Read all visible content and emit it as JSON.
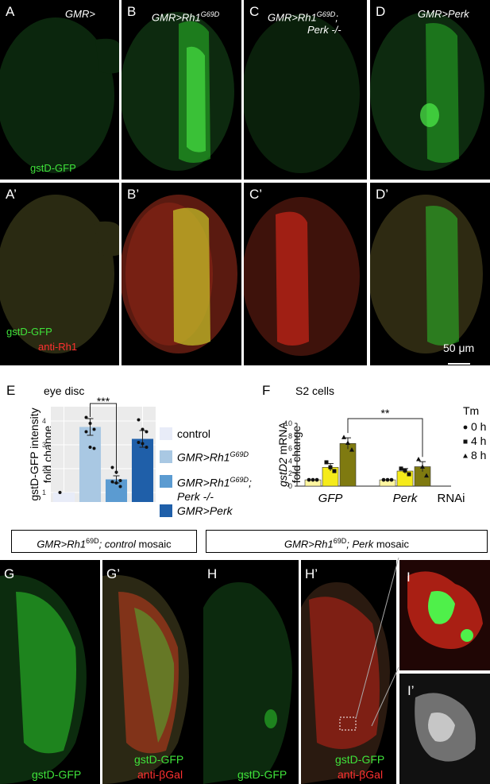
{
  "colors": {
    "gfp": "#3fe23a",
    "rh1": "#ff3030",
    "bar1": "#e8ecf8",
    "bar2": "#a9c8e3",
    "bar3": "#5b9bd1",
    "bar4": "#1f5fa9",
    "f_light": "#fff6a0",
    "f_mid": "#f5eb1a",
    "f_dark": "#7f7a10"
  },
  "row1": {
    "panels": [
      {
        "letter": "A",
        "genotype": "GMR>",
        "sub": "",
        "channel": "gstD-GFP"
      },
      {
        "letter": "B",
        "genotype": "GMR>Rh1",
        "sup": "G69D",
        "sub": ""
      },
      {
        "letter": "C",
        "genotype": "GMR>Rh1",
        "sup": "G69D",
        "suffix": ";",
        "sub": "Perk -/-"
      },
      {
        "letter": "D",
        "genotype": "GMR>Perk"
      }
    ]
  },
  "row2": {
    "panels": [
      {
        "letter": "A’",
        "channel1": "gstD-GFP",
        "channel2": "anti-Rh1"
      },
      {
        "letter": "B’"
      },
      {
        "letter": "C’"
      },
      {
        "letter": "D’",
        "scale": "50 μm"
      }
    ]
  },
  "chart_data": [
    {
      "type": "bar",
      "panel": "E",
      "title": "eye disc",
      "ylabel": "gstD-GFP intensity fold change",
      "ylabel_line1": "gstD-GFP intensity",
      "ylabel_line2": "fold change",
      "yticks": [
        "1",
        "2",
        "3",
        "4"
      ],
      "ylim": [
        0.6,
        4.6
      ],
      "categories": [
        "control",
        "GMR>Rh1G69D",
        "GMR>Rh1G69D; Perk -/-",
        "GMR>Perk"
      ],
      "values": [
        1.0,
        3.75,
        1.55,
        3.25
      ],
      "errors": [
        0.0,
        0.35,
        0.15,
        0.35
      ],
      "points": [
        [
          1.0
        ],
        [
          4.15,
          3.9,
          3.65,
          3.55,
          2.9,
          2.85
        ],
        [
          2.05,
          1.85,
          1.5,
          1.45,
          1.4,
          1.25
        ],
        [
          4.05,
          3.65,
          3.55,
          3.1,
          3.05,
          2.9
        ]
      ],
      "significance": "***",
      "legend": [
        {
          "label": "control"
        },
        {
          "label": "GMR>Rh1",
          "sup": "G69D"
        },
        {
          "label": "GMR>Rh1",
          "sup": "G69D",
          "suffix": ";",
          "label2": "Perk -/-"
        },
        {
          "label": "GMR>Perk"
        }
      ],
      "grid": true
    },
    {
      "type": "bar",
      "panel": "F",
      "title": "S2 cells",
      "ylabel": "gstD2 mRNA fold change",
      "ylabel_gene": "gstD2",
      "ylabel_rest": " mRNA",
      "ylabel_line2": "fold change",
      "yticks": [
        "0",
        "2",
        "4",
        "6",
        "8",
        "10"
      ],
      "ylim": [
        0,
        10
      ],
      "groups": [
        "GFP",
        "Perk"
      ],
      "group_suffix": "RNAi",
      "series": [
        {
          "name": "0 h",
          "values": [
            1.0,
            1.0
          ],
          "errors": [
            0.0,
            0.0
          ]
        },
        {
          "name": "4 h",
          "values": [
            3.0,
            2.4
          ],
          "errors": [
            0.6,
            0.4
          ]
        },
        {
          "name": "8 h",
          "values": [
            6.8,
            3.1
          ],
          "errors": [
            0.9,
            0.8
          ]
        }
      ],
      "points": [
        [
          [
            1.0,
            1.0,
            1.0
          ],
          [
            3.8,
            3.0,
            2.4
          ],
          [
            7.8,
            6.9,
            5.8
          ]
        ],
        [
          [
            1.0,
            1.0,
            1.0
          ],
          [
            2.8,
            2.5,
            1.9
          ],
          [
            4.3,
            3.1,
            1.7
          ]
        ]
      ],
      "legend_title": "Tm",
      "significance": "**",
      "grid": false
    }
  ],
  "bottom": {
    "box1": {
      "pre": "GMR>Rh1",
      "sup": "69D",
      "mid": "; ",
      "it": "control",
      "post": " mosaic"
    },
    "box2": {
      "pre": "GMR>Rh1",
      "sup": "69D",
      "mid": "; ",
      "it": "Perk",
      "post": " mosaic"
    },
    "panels": [
      {
        "letter": "G",
        "channel": "gstD-GFP"
      },
      {
        "letter": "G’",
        "channel1": "gstD-GFP",
        "channel2": "anti-βGal"
      },
      {
        "letter": "H",
        "channel": "gstD-GFP"
      },
      {
        "letter": "H’",
        "channel1": "gstD-GFP",
        "channel2": "anti-βGal"
      },
      {
        "letter": "I"
      },
      {
        "letter": "I’"
      }
    ]
  }
}
